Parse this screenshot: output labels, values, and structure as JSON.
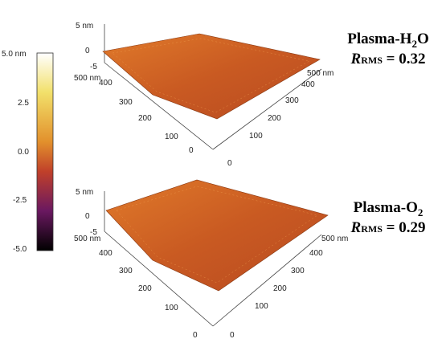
{
  "colorbar": {
    "ticks": [
      "5.0 nm",
      "2.5",
      "0.0",
      "-2.5",
      "-5.0"
    ],
    "colors": [
      "#ffffff",
      "#f2e06a",
      "#e2902c",
      "#c0402a",
      "#6a1860",
      "#000000"
    ]
  },
  "panels": [
    {
      "title_main": "Plasma-H",
      "title_sub": "2",
      "title_tail": "O",
      "rms_r": "R",
      "rms_sub": "RMS",
      "rms_value": "= 0.32",
      "z_labels": [
        "5 nm",
        "0",
        "-5"
      ],
      "left_axis": [
        "500 nm",
        "400",
        "300",
        "200",
        "100",
        "0"
      ],
      "right_axis": [
        "500 nm",
        "400",
        "300",
        "200",
        "100",
        "0"
      ],
      "surface_color": "#c8561a"
    },
    {
      "title_main": "Plasma-O",
      "title_sub": "2",
      "title_tail": "",
      "rms_r": "R",
      "rms_sub": "RMS",
      "rms_value": "= 0.29",
      "z_labels": [
        "5 nm",
        "0",
        "-5"
      ],
      "left_axis": [
        "500 nm",
        "400",
        "300",
        "200",
        "100",
        "0"
      ],
      "right_axis": [
        "500 nm",
        "400",
        "300",
        "200",
        "100",
        "0"
      ],
      "surface_color": "#c8561a"
    }
  ]
}
